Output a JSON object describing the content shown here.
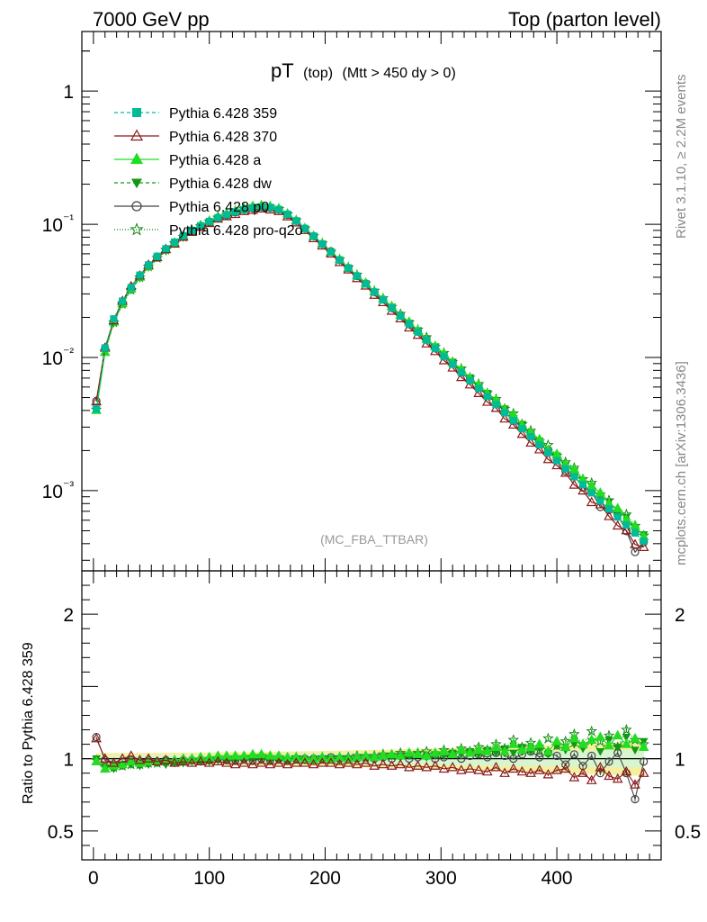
{
  "header": {
    "left": "7000 GeV pp",
    "right": "Top (parton level)"
  },
  "side_labels": {
    "top": "Rivet 3.1.10, ≥ 2.2M events",
    "bottom": "mcplots.cern.ch [arXiv:1306.3436]"
  },
  "plot_title": {
    "main": "pT",
    "small": "(top)",
    "cuts": "(Mtt > 450 dy > 0)"
  },
  "analysis_label": "(MC_FBA_TTBAR)",
  "ratio_ylabel": "Ratio to Pythia 6.428 359",
  "top_yticks": [
    "1",
    "10⁻¹",
    "10⁻²",
    "10⁻³"
  ],
  "ratio_yticks": [
    "2",
    "1",
    "0.5"
  ],
  "xticks": [
    "0",
    "100",
    "200",
    "300",
    "400"
  ],
  "legend": [
    {
      "name": "Pythia 6.428 359",
      "color": "#00bb99",
      "marker": "square",
      "dash": "4,3"
    },
    {
      "name": "Pythia 6.428 370",
      "color": "#8b1a1a",
      "marker": "triangle-open",
      "dash": ""
    },
    {
      "name": "Pythia 6.428 a",
      "color": "#22dd22",
      "marker": "triangle",
      "dash": ""
    },
    {
      "name": "Pythia 6.428 dw",
      "color": "#119911",
      "marker": "triangle-down",
      "dash": "4,3"
    },
    {
      "name": "Pythia 6.428 p0",
      "color": "#444444",
      "marker": "circle-open",
      "dash": ""
    },
    {
      "name": "Pythia 6.428 pro-q2o",
      "color": "#118811",
      "marker": "star-open",
      "dash": "1,2"
    }
  ],
  "chart_data": {
    "type": "line",
    "title": "pT (top) (Mtt > 450 dy > 0)",
    "xlim": [
      -10,
      490
    ],
    "top_ylim": [
      0.00025,
      2.8
    ],
    "top_yscale": "log",
    "ratio_ylim": [
      0.3,
      2.3
    ],
    "ratio_ylabel": "Ratio to Pythia 6.428 359",
    "grid": false,
    "legend_position": "top-left",
    "x": [
      2.5,
      10,
      17.5,
      25,
      32.5,
      40,
      47.5,
      55,
      62.5,
      70,
      77.5,
      85,
      92.5,
      100,
      107.5,
      115,
      122.5,
      130,
      137.5,
      145,
      152.5,
      160,
      167.5,
      175,
      182.5,
      190,
      197.5,
      205,
      212.5,
      220,
      227.5,
      235,
      242.5,
      250,
      257.5,
      265,
      272.5,
      280,
      287.5,
      295,
      302.5,
      310,
      317.5,
      325,
      332.5,
      340,
      347.5,
      355,
      362.5,
      370,
      377.5,
      385,
      392.5,
      400,
      407.5,
      415,
      422.5,
      430,
      437.5,
      445,
      452.5,
      460,
      467.5,
      475
    ],
    "reference": {
      "name": "Pythia 6.428 359",
      "values": [
        0.0041,
        0.0118,
        0.0195,
        0.0265,
        0.0335,
        0.0415,
        0.0495,
        0.0575,
        0.0655,
        0.0735,
        0.082,
        0.09,
        0.0975,
        0.105,
        0.112,
        0.118,
        0.124,
        0.129,
        0.133,
        0.135,
        0.134,
        0.129,
        0.119,
        0.106,
        0.093,
        0.0815,
        0.0711,
        0.062,
        0.054,
        0.047,
        0.0409,
        0.0356,
        0.031,
        0.027,
        0.0235,
        0.0204,
        0.0178,
        0.0155,
        0.0135,
        0.0117,
        0.0102,
        0.0089,
        0.00772,
        0.00672,
        0.00585,
        0.00509,
        0.00443,
        0.00385,
        0.00336,
        0.00292,
        0.00254,
        0.00221,
        0.00193,
        0.00168,
        0.00146,
        0.00127,
        0.00111,
        0.000962,
        0.000837,
        0.000729,
        0.000634,
        0.000552,
        0.000481,
        0.000418
      ]
    },
    "ratio_series": [
      {
        "name": "Pythia 6.428 359",
        "values": [
          1.0,
          1.0,
          1.0,
          1.0,
          1.0,
          1.0,
          1.0,
          1.0,
          1.0,
          1.0,
          1.0,
          1.0,
          1.0,
          1.0,
          1.0,
          1.0,
          1.0,
          1.0,
          1.0,
          1.0,
          1.0,
          1.0,
          1.0,
          1.0,
          1.0,
          1.0,
          1.0,
          1.0,
          1.0,
          1.0,
          1.0,
          1.0,
          1.0,
          1.0,
          1.0,
          1.0,
          1.0,
          1.0,
          1.0,
          1.0,
          1.0,
          1.0,
          1.0,
          1.0,
          1.0,
          1.0,
          1.0,
          1.0,
          1.0,
          1.0,
          1.0,
          1.0,
          1.0,
          1.0,
          1.0,
          1.0,
          1.0,
          1.0,
          1.0,
          1.0,
          1.0,
          1.0,
          1.0,
          1.0
        ]
      },
      {
        "name": "Pythia 6.428 370",
        "values": [
          1.14,
          1.0,
          0.97,
          1.0,
          1.02,
          0.99,
          1.0,
          0.98,
          0.99,
          0.97,
          0.98,
          0.97,
          0.98,
          0.97,
          0.98,
          0.97,
          0.96,
          0.97,
          0.96,
          0.97,
          0.96,
          0.97,
          0.96,
          0.97,
          0.97,
          0.96,
          0.97,
          0.97,
          0.96,
          0.97,
          0.96,
          0.97,
          0.95,
          0.96,
          0.95,
          0.96,
          0.94,
          0.95,
          0.94,
          0.95,
          0.93,
          0.94,
          0.92,
          0.93,
          0.92,
          0.91,
          0.94,
          0.9,
          0.93,
          0.91,
          0.9,
          0.92,
          0.89,
          0.92,
          0.93,
          0.87,
          0.9,
          0.85,
          0.94,
          0.88,
          0.86,
          0.91,
          0.82,
          0.9
        ]
      },
      {
        "name": "Pythia 6.428 a",
        "values": [
          0.98,
          0.93,
          0.95,
          0.96,
          0.98,
          0.97,
          0.98,
          0.98,
          0.99,
          0.99,
          1.0,
          1.0,
          1.01,
          1.01,
          1.02,
          1.02,
          1.02,
          1.02,
          1.03,
          1.03,
          1.02,
          1.02,
          1.01,
          1.01,
          1.0,
          1.0,
          1.01,
          1.0,
          1.01,
          1.0,
          1.01,
          1.02,
          1.01,
          1.02,
          1.03,
          1.02,
          1.04,
          1.03,
          1.02,
          1.04,
          1.05,
          1.03,
          1.06,
          1.04,
          1.06,
          1.05,
          1.08,
          1.05,
          1.1,
          1.06,
          1.08,
          1.1,
          1.05,
          1.12,
          1.08,
          1.14,
          1.1,
          1.13,
          1.15,
          1.09,
          1.16,
          1.1,
          1.14,
          1.08
        ]
      },
      {
        "name": "Pythia 6.428 dw",
        "values": [
          1.0,
          0.94,
          0.93,
          0.95,
          0.96,
          0.95,
          0.96,
          0.97,
          0.96,
          0.97,
          0.97,
          0.98,
          0.98,
          0.98,
          0.99,
          0.99,
          0.99,
          1.0,
          1.0,
          1.0,
          0.99,
          1.0,
          0.99,
          1.0,
          0.99,
          0.99,
          1.0,
          1.0,
          0.99,
          1.0,
          1.0,
          1.01,
          1.0,
          1.01,
          1.02,
          1.01,
          1.02,
          1.03,
          1.01,
          1.03,
          1.02,
          1.04,
          1.03,
          1.05,
          1.03,
          1.06,
          1.04,
          1.07,
          1.04,
          1.08,
          1.05,
          1.07,
          1.03,
          1.09,
          1.06,
          1.1,
          1.07,
          1.12,
          1.05,
          1.13,
          1.08,
          1.15,
          1.06,
          1.12
        ]
      },
      {
        "name": "Pythia 6.428 p0",
        "values": [
          1.15,
          0.99,
          0.96,
          0.98,
          0.99,
          0.98,
          0.99,
          0.98,
          0.99,
          0.98,
          0.99,
          0.99,
          0.99,
          0.99,
          1.0,
          0.99,
          0.99,
          1.0,
          0.99,
          1.0,
          0.99,
          1.0,
          0.99,
          1.0,
          1.0,
          1.0,
          1.0,
          1.01,
          1.0,
          1.0,
          1.0,
          1.01,
          1.0,
          1.01,
          1.0,
          1.02,
          1.0,
          1.01,
          1.02,
          1.0,
          1.01,
          1.03,
          1.0,
          1.02,
          1.03,
          1.01,
          1.04,
          1.02,
          1.0,
          1.03,
          1.05,
          1.01,
          1.04,
          1.02,
          0.96,
          1.03,
          0.95,
          1.02,
          0.9,
          0.98,
          1.04,
          0.9,
          0.72,
          0.98
        ]
      },
      {
        "name": "Pythia 6.428 pro-q2o",
        "values": [
          0.99,
          0.94,
          0.94,
          0.95,
          0.96,
          0.96,
          0.97,
          0.97,
          0.98,
          0.98,
          0.98,
          0.99,
          0.99,
          1.0,
          1.0,
          1.0,
          1.01,
          1.01,
          1.01,
          1.02,
          1.01,
          1.01,
          1.0,
          1.01,
          1.0,
          1.0,
          1.01,
          1.0,
          1.01,
          1.01,
          1.02,
          1.01,
          1.02,
          1.03,
          1.02,
          1.04,
          1.03,
          1.04,
          1.05,
          1.03,
          1.06,
          1.04,
          1.07,
          1.05,
          1.08,
          1.06,
          1.1,
          1.07,
          1.13,
          1.08,
          1.11,
          1.06,
          1.14,
          1.09,
          1.12,
          1.17,
          1.1,
          1.19,
          1.12,
          1.16,
          1.08,
          1.2,
          1.13,
          1.1
        ]
      }
    ],
    "reference_band": {
      "inner": 0.02,
      "outer_low_x": 0.04,
      "outer_high_x": 0.12
    }
  }
}
